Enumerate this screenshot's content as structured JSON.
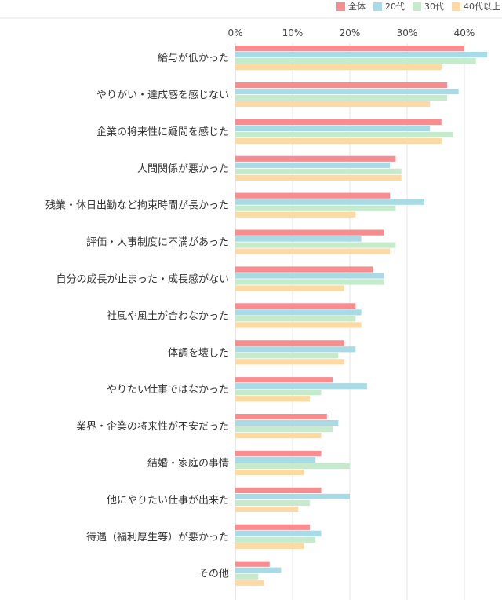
{
  "chart_data": {
    "type": "bar",
    "orientation": "horizontal",
    "title": "",
    "xlabel": "",
    "ylabel": "",
    "xlim": [
      0,
      45
    ],
    "xticks": [
      "0%",
      "10%",
      "20%",
      "30%",
      "40%"
    ],
    "grid": true,
    "legend_position": "top-right",
    "categories": [
      "給与が低かった",
      "やりがい・達成感を感じない",
      "企業の将来性に疑問を感じた",
      "人間関係が悪かった",
      "残業・休日出勤など拘束時間が長かった",
      "評価・人事制度に不満があった",
      "自分の成長が止まった・成長感がない",
      "社風や風土が合わなかった",
      "体調を壊した",
      "やりたい仕事ではなかった",
      "業界・企業の将来性が不安だった",
      "結婚・家庭の事情",
      "他にやりたい仕事が出来た",
      "待遇（福利厚生等）が悪かった",
      "その他"
    ],
    "series": [
      {
        "name": "全体",
        "color": "#f98c8e",
        "values": [
          40,
          37,
          36,
          28,
          27,
          26,
          24,
          21,
          19,
          17,
          16,
          15,
          15,
          13,
          6
        ]
      },
      {
        "name": "20代",
        "color": "#a8dbe6",
        "values": [
          44,
          39,
          34,
          27,
          33,
          22,
          26,
          22,
          21,
          23,
          18,
          14,
          20,
          15,
          8
        ]
      },
      {
        "name": "30代",
        "color": "#c6ebcc",
        "values": [
          42,
          37,
          38,
          29,
          28,
          28,
          26,
          21,
          18,
          15,
          17,
          20,
          13,
          14,
          4
        ]
      },
      {
        "name": "40代以上",
        "color": "#fdd9a4",
        "values": [
          36,
          34,
          36,
          29,
          21,
          27,
          19,
          22,
          19,
          13,
          15,
          12,
          11,
          12,
          5
        ]
      }
    ]
  }
}
